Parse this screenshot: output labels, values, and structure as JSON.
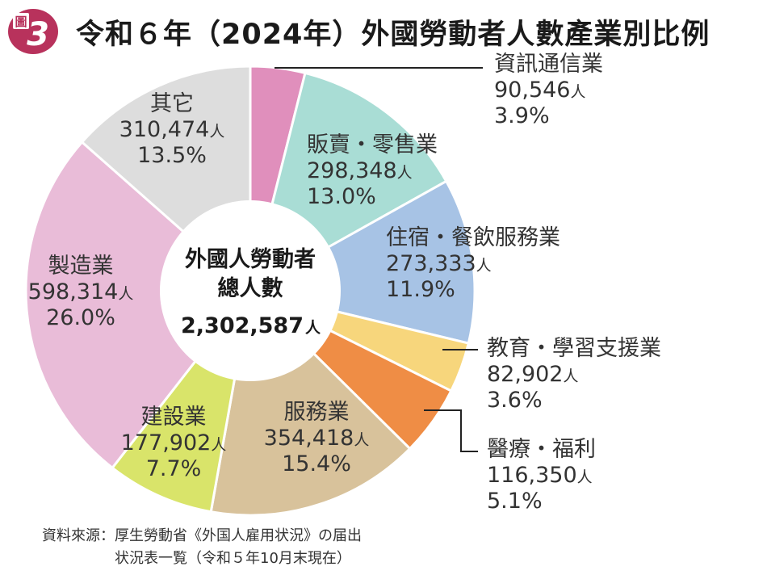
{
  "figure": {
    "badge_kanji": "圖",
    "badge_number": "3"
  },
  "title": "令和６年（2024年）外國勞動者人數產業別比例",
  "center": {
    "line1": "外國人勞動者",
    "line2": "總人數",
    "total": "2,302,587",
    "unit": "人"
  },
  "source": {
    "line1": "資料來源：厚生勞動省《外国人雇用状況》の届出",
    "line2": "状況表一覧（令和５年10月末現在）"
  },
  "chart_data": {
    "type": "pie",
    "unit": "人",
    "slices": [
      {
        "label": "資訊通信業",
        "value": 90546,
        "value_text": "90,546",
        "percent": "3.9%",
        "color": "#e08fbc"
      },
      {
        "label": "販賣・零售業",
        "value": 298348,
        "value_text": "298,348",
        "percent": "13.0%",
        "color": "#a9ddd5"
      },
      {
        "label": "住宿・餐飲服務業",
        "value": 273333,
        "value_text": "273,333",
        "percent": "11.9%",
        "color": "#a7c3e5"
      },
      {
        "label": "教育・學習支援業",
        "value": 82902,
        "value_text": "82,902",
        "percent": "3.6%",
        "color": "#f7d67c"
      },
      {
        "label": "醫療・福利",
        "value": 116350,
        "value_text": "116,350",
        "percent": "5.1%",
        "color": "#ef8d45"
      },
      {
        "label": "服務業",
        "value": 354418,
        "value_text": "354,418",
        "percent": "15.4%",
        "color": "#d8c29b"
      },
      {
        "label": "建設業",
        "value": 177902,
        "value_text": "177,902",
        "percent": "7.7%",
        "color": "#d9e46a"
      },
      {
        "label": "製造業",
        "value": 598314,
        "value_text": "598,314",
        "percent": "26.0%",
        "color": "#e9bcd8"
      },
      {
        "label": "其它",
        "value": 310474,
        "value_text": "310,474",
        "percent": "13.5%",
        "color": "#dddddd"
      }
    ]
  }
}
